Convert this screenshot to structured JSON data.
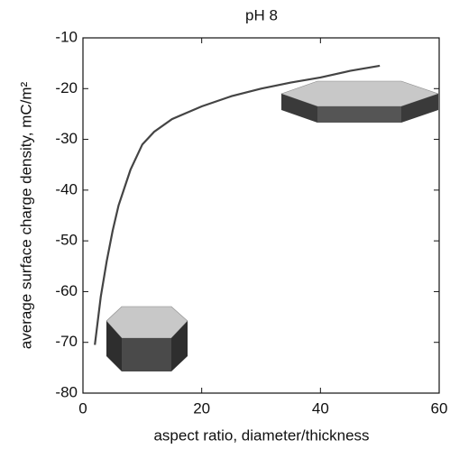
{
  "chart_data": {
    "type": "line",
    "title": "pH 8",
    "x_label": "aspect ratio, diameter/thickness",
    "y_label": "average surface charge density, mC/m²",
    "x": [
      2,
      3,
      4,
      5,
      6,
      8,
      10,
      12,
      15,
      20,
      25,
      30,
      35,
      40,
      45,
      50
    ],
    "series": [
      {
        "name": null,
        "color": "#444444",
        "values": [
          -70.5,
          -61,
          -54,
          -48,
          -43,
          -36,
          -31,
          -28.5,
          -26,
          -23.5,
          -21.5,
          -20,
          -18.8,
          -17.8,
          -16.5,
          -15.5
        ]
      }
    ],
    "xlim": [
      0,
      60
    ],
    "xticks": [
      0,
      20,
      40,
      60
    ],
    "ylim": [
      -80,
      -10
    ],
    "yticks": [
      -80,
      -70,
      -60,
      -50,
      -40,
      -30,
      -20,
      -10
    ]
  }
}
